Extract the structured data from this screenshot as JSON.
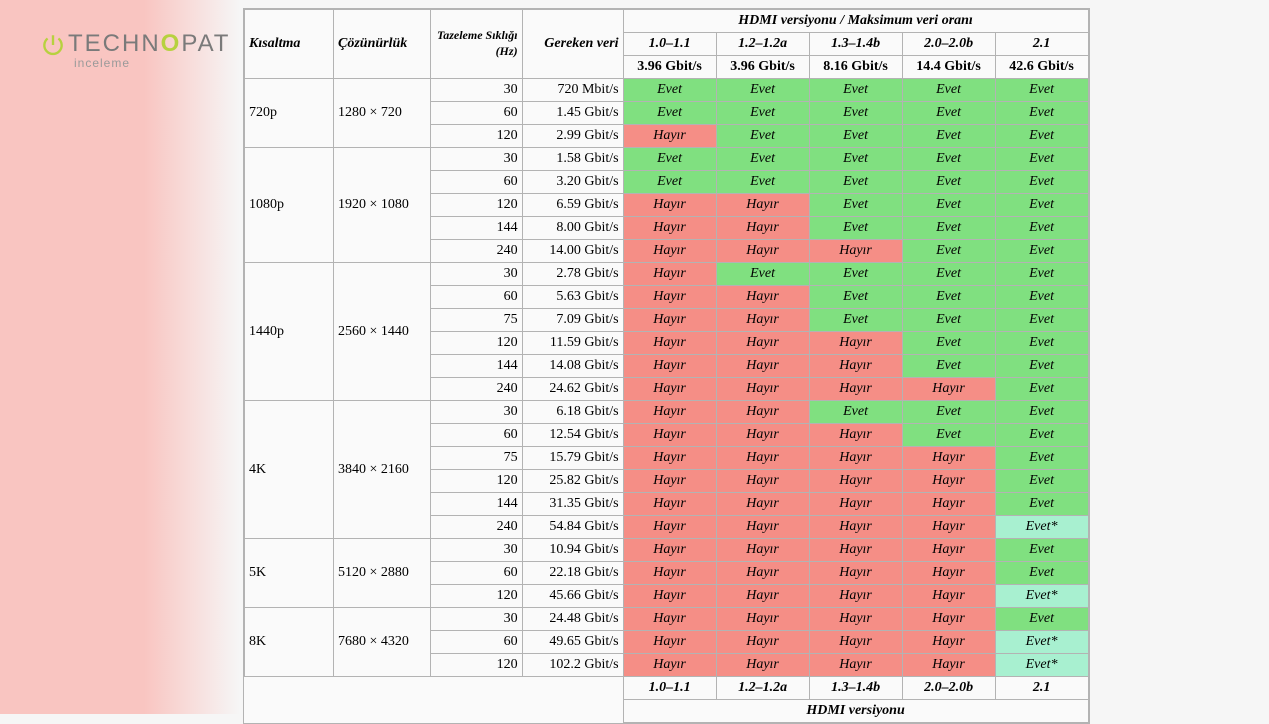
{
  "logo": {
    "brand_pre": "TECHN",
    "brand_accent": "O",
    "brand_post": "PAT",
    "sub": "inceleme",
    "accent_color": "#b7d13f",
    "text_color": "#7a7a7a"
  },
  "colors": {
    "yes": "#80e080",
    "no": "#f58e86",
    "yes_star": "#a8f0d0",
    "border": "#b3b3b3",
    "bg": "#fafafa"
  },
  "header": {
    "short": "Kısaltma",
    "resolution": "Çözünürlük",
    "refresh": "Tazeleme Sıklığı (Hz)",
    "required": "Gereken veri",
    "hdmi_title": "HDMI versiyonu  /  Maksimum veri oranı"
  },
  "hdmi_versions": [
    {
      "label": "1.0–1.1",
      "rate": "3.96 Gbit/s"
    },
    {
      "label": "1.2–1.2a",
      "rate": "3.96 Gbit/s"
    },
    {
      "label": "1.3–1.4b",
      "rate": "8.16 Gbit/s"
    },
    {
      "label": "2.0–2.0b",
      "rate": "14.4 Gbit/s"
    },
    {
      "label": "2.1",
      "rate": "42.6 Gbit/s"
    }
  ],
  "labels": {
    "yes": "Evet",
    "no": "Hayır",
    "yes_star": "Evet*"
  },
  "groups": [
    {
      "short": "720p",
      "resolution": "1280 × 720",
      "rows": [
        {
          "hz": "30",
          "req": "720 Mbit/s",
          "cells": [
            "yes",
            "yes",
            "yes",
            "yes",
            "yes"
          ]
        },
        {
          "hz": "60",
          "req": "1.45 Gbit/s",
          "cells": [
            "yes",
            "yes",
            "yes",
            "yes",
            "yes"
          ]
        },
        {
          "hz": "120",
          "req": "2.99 Gbit/s",
          "cells": [
            "no",
            "yes",
            "yes",
            "yes",
            "yes"
          ]
        }
      ]
    },
    {
      "short": "1080p",
      "resolution": "1920 × 1080",
      "rows": [
        {
          "hz": "30",
          "req": "1.58 Gbit/s",
          "cells": [
            "yes",
            "yes",
            "yes",
            "yes",
            "yes"
          ]
        },
        {
          "hz": "60",
          "req": "3.20 Gbit/s",
          "cells": [
            "yes",
            "yes",
            "yes",
            "yes",
            "yes"
          ]
        },
        {
          "hz": "120",
          "req": "6.59 Gbit/s",
          "cells": [
            "no",
            "no",
            "yes",
            "yes",
            "yes"
          ]
        },
        {
          "hz": "144",
          "req": "8.00 Gbit/s",
          "cells": [
            "no",
            "no",
            "yes",
            "yes",
            "yes"
          ]
        },
        {
          "hz": "240",
          "req": "14.00 Gbit/s",
          "cells": [
            "no",
            "no",
            "no",
            "yes",
            "yes"
          ]
        }
      ]
    },
    {
      "short": "1440p",
      "resolution": "2560 × 1440",
      "rows": [
        {
          "hz": "30",
          "req": "2.78 Gbit/s",
          "cells": [
            "no",
            "yes",
            "yes",
            "yes",
            "yes"
          ]
        },
        {
          "hz": "60",
          "req": "5.63 Gbit/s",
          "cells": [
            "no",
            "no",
            "yes",
            "yes",
            "yes"
          ]
        },
        {
          "hz": "75",
          "req": "7.09 Gbit/s",
          "cells": [
            "no",
            "no",
            "yes",
            "yes",
            "yes"
          ]
        },
        {
          "hz": "120",
          "req": "11.59 Gbit/s",
          "cells": [
            "no",
            "no",
            "no",
            "yes",
            "yes"
          ]
        },
        {
          "hz": "144",
          "req": "14.08 Gbit/s",
          "cells": [
            "no",
            "no",
            "no",
            "yes",
            "yes"
          ]
        },
        {
          "hz": "240",
          "req": "24.62 Gbit/s",
          "cells": [
            "no",
            "no",
            "no",
            "no",
            "yes"
          ]
        }
      ]
    },
    {
      "short": "4K",
      "resolution": "3840 × 2160",
      "rows": [
        {
          "hz": "30",
          "req": "6.18 Gbit/s",
          "cells": [
            "no",
            "no",
            "yes",
            "yes",
            "yes"
          ]
        },
        {
          "hz": "60",
          "req": "12.54 Gbit/s",
          "cells": [
            "no",
            "no",
            "no",
            "yes",
            "yes"
          ]
        },
        {
          "hz": "75",
          "req": "15.79 Gbit/s",
          "cells": [
            "no",
            "no",
            "no",
            "no",
            "yes"
          ]
        },
        {
          "hz": "120",
          "req": "25.82 Gbit/s",
          "cells": [
            "no",
            "no",
            "no",
            "no",
            "yes"
          ]
        },
        {
          "hz": "144",
          "req": "31.35 Gbit/s",
          "cells": [
            "no",
            "no",
            "no",
            "no",
            "yes"
          ]
        },
        {
          "hz": "240",
          "req": "54.84 Gbit/s",
          "cells": [
            "no",
            "no",
            "no",
            "no",
            "yes_star"
          ]
        }
      ]
    },
    {
      "short": "5K",
      "resolution": "5120 × 2880",
      "rows": [
        {
          "hz": "30",
          "req": "10.94 Gbit/s",
          "cells": [
            "no",
            "no",
            "no",
            "no",
            "yes"
          ]
        },
        {
          "hz": "60",
          "req": "22.18 Gbit/s",
          "cells": [
            "no",
            "no",
            "no",
            "no",
            "yes"
          ]
        },
        {
          "hz": "120",
          "req": "45.66 Gbit/s",
          "cells": [
            "no",
            "no",
            "no",
            "no",
            "yes_star"
          ]
        }
      ]
    },
    {
      "short": "8K",
      "resolution": "7680 × 4320",
      "rows": [
        {
          "hz": "30",
          "req": "24.48 Gbit/s",
          "cells": [
            "no",
            "no",
            "no",
            "no",
            "yes"
          ]
        },
        {
          "hz": "60",
          "req": "49.65 Gbit/s",
          "cells": [
            "no",
            "no",
            "no",
            "no",
            "yes_star"
          ]
        },
        {
          "hz": "120",
          "req": "102.2 Gbit/s",
          "cells": [
            "no",
            "no",
            "no",
            "no",
            "yes_star"
          ]
        }
      ]
    }
  ],
  "footer": {
    "hdmi_title": "HDMI versiyonu"
  }
}
